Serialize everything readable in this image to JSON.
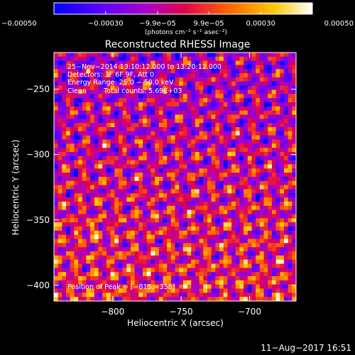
{
  "chart_data": {
    "type": "heatmap",
    "title": "Reconstructed RHESSI Image",
    "xlabel": "Heliocentric X (arcsec)",
    "ylabel": "Heliocentric Y (arcsec)",
    "xlim": [
      -843,
      -666
    ],
    "ylim": [
      -412,
      -222
    ],
    "x_ticks": [
      {
        "v": -800,
        "label": "−800"
      },
      {
        "v": -750,
        "label": "−750"
      },
      {
        "v": -700,
        "label": "−700"
      }
    ],
    "y_ticks": [
      {
        "v": -250,
        "label": "−250"
      },
      {
        "v": -300,
        "label": "−300"
      },
      {
        "v": -350,
        "label": "−350"
      },
      {
        "v": -400,
        "label": "−400"
      }
    ],
    "colorbar": {
      "range": [
        -0.0005,
        0.0005
      ],
      "unit": "(photons cm⁻² s⁻¹ asec⁻²)",
      "ticks": [
        {
          "v": -0.0005,
          "label": "−0.00050"
        },
        {
          "v": -0.0003,
          "label": "−0.00030"
        },
        {
          "v": -9.9e-05,
          "label": "−9.9e−05"
        },
        {
          "v": 9.9e-05,
          "label": "9.9e−05"
        },
        {
          "v": 0.0003,
          "label": "0.00030"
        },
        {
          "v": 0.0005,
          "label": "0.00050"
        }
      ]
    },
    "annotations": [
      "25−Nov−2014 13:10:12.000 to 13:20:12.000",
      "Detectors: 3F 6F 9F, Att 0",
      "Energy Range: 25.0 − 50.0 keV",
      "Clean",
      "Total counts: 5.69E+03"
    ],
    "peak_label": "Position of Peak = [−815,−358]",
    "peak": [
      -815,
      -358
    ],
    "colormap": [
      "#0000ff",
      "#5a00ff",
      "#ac00c8",
      "#e00050",
      "#ff6600",
      "#ffc800",
      "#ffffff"
    ]
  },
  "footer": {
    "date": "11−Aug−2017 16:51"
  }
}
